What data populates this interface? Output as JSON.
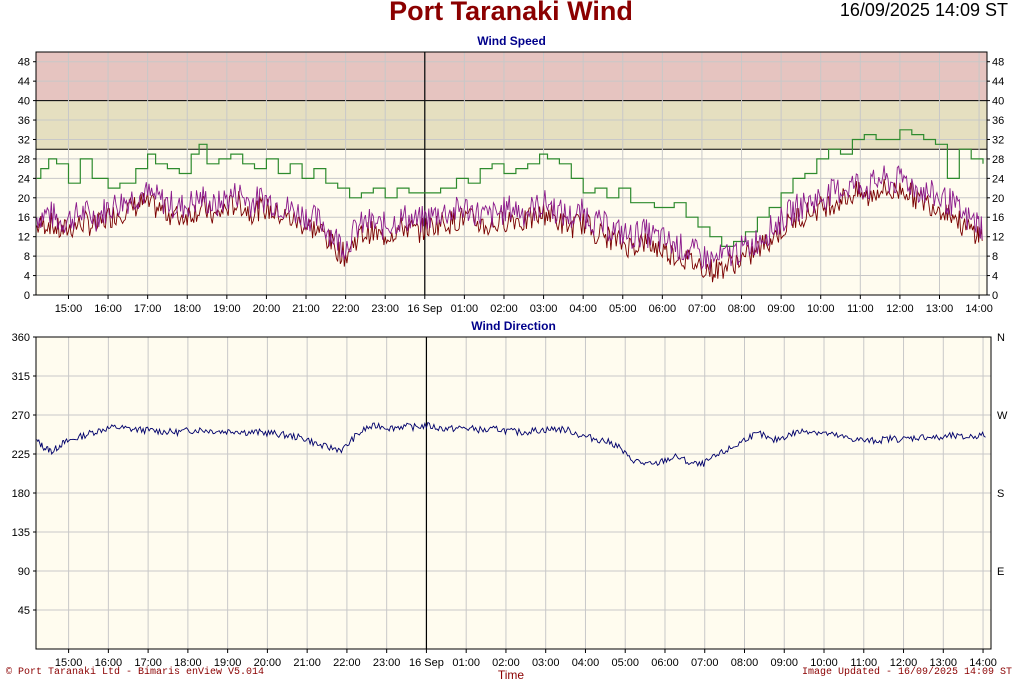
{
  "title": "Port Taranaki Wind",
  "timestamp": "16/09/2025 14:09 ST",
  "footer": {
    "left": "© Port Taranaki Ltd - Bimaris enView V5.014",
    "center": "Time",
    "right": "Image Updated - 16/09/2025 14:09 ST"
  },
  "colors": {
    "title": "#8b0000",
    "panel_title": "#00008b",
    "plot_bg": "#fffcef",
    "band_high": "#e6c4c0",
    "band_mid": "#e5dfc0",
    "gust": "#2e8b2e",
    "speed_purple": "#8b1a8b",
    "speed_dark": "#7a0000",
    "direction": "#00006b"
  },
  "chart_data": [
    {
      "type": "line",
      "title": "Wind Speed",
      "x_tick_labels": [
        "15:00",
        "16:00",
        "17:00",
        "18:00",
        "19:00",
        "20:00",
        "21:00",
        "22:00",
        "23:00",
        "16 Sep",
        "01:00",
        "02:00",
        "03:00",
        "04:00",
        "05:00",
        "06:00",
        "07:00",
        "08:00",
        "09:00",
        "10:00",
        "11:00",
        "12:00",
        "13:00",
        "14:00"
      ],
      "x_range_hours": [
        -9.82,
        14.2
      ],
      "x_tick_hours": [
        -9,
        -8,
        -7,
        -6,
        -5,
        -4,
        -3,
        -2,
        -1,
        0,
        1,
        2,
        3,
        4,
        5,
        6,
        7,
        8,
        9,
        10,
        11,
        12,
        13,
        14
      ],
      "divider_hour": 0,
      "y_ticks": [
        0,
        4,
        8,
        12,
        16,
        20,
        24,
        28,
        32,
        36,
        40,
        44,
        48
      ],
      "ylim": [
        0,
        50
      ],
      "bands": [
        {
          "from": 30,
          "to": 40,
          "color": "#e5dfc0"
        },
        {
          "from": 40,
          "to": 50,
          "color": "#e6c4c0"
        }
      ],
      "grid": true,
      "series": [
        {
          "key": "gust",
          "color": "#2e8b2e",
          "x": [
            -9.8,
            -9.7,
            -9.5,
            -9.3,
            -9.0,
            -8.7,
            -8.4,
            -8.0,
            -7.7,
            -7.3,
            -7.0,
            -6.8,
            -6.5,
            -6.2,
            -5.9,
            -5.7,
            -5.5,
            -5.2,
            -4.9,
            -4.6,
            -4.3,
            -4.0,
            -3.7,
            -3.4,
            -3.1,
            -2.8,
            -2.5,
            -2.2,
            -1.9,
            -1.6,
            -1.3,
            -1.0,
            -0.7,
            -0.4,
            0.0,
            0.4,
            0.8,
            1.1,
            1.4,
            1.7,
            2.0,
            2.3,
            2.6,
            2.9,
            3.1,
            3.4,
            3.7,
            4.0,
            4.3,
            4.6,
            4.9,
            5.2,
            5.5,
            5.8,
            6.0,
            6.3,
            6.6,
            6.9,
            7.2,
            7.5,
            7.8,
            8.1,
            8.4,
            8.7,
            9.0,
            9.3,
            9.6,
            9.9,
            10.2,
            10.5,
            10.8,
            11.1,
            11.4,
            11.7,
            12.0,
            12.3,
            12.6,
            12.9,
            13.2,
            13.5,
            13.8,
            14.1
          ],
          "y": [
            24,
            26,
            28,
            27,
            23,
            28,
            24,
            22,
            23,
            26,
            29,
            27,
            26,
            25,
            29,
            31,
            27,
            28,
            29,
            27,
            26,
            28,
            25,
            27,
            24,
            26,
            23,
            22,
            20,
            21,
            22,
            20,
            22,
            21,
            21,
            22,
            24,
            23,
            26,
            27,
            25,
            26,
            27,
            29,
            28,
            27,
            24,
            21,
            22,
            20,
            22,
            19,
            19,
            18,
            18,
            19,
            16,
            14,
            12,
            10,
            11,
            13,
            16,
            18,
            21,
            24,
            25,
            28,
            30,
            29,
            32,
            33,
            32,
            32,
            34,
            33,
            32,
            31,
            24,
            30,
            28,
            27
          ]
        },
        {
          "key": "speed",
          "color": "#8b1a8b",
          "x": [
            -9.8,
            -9.5,
            -9.2,
            -8.9,
            -8.6,
            -8.3,
            -8.0,
            -7.7,
            -7.4,
            -7.1,
            -6.8,
            -6.5,
            -6.2,
            -5.9,
            -5.6,
            -5.3,
            -5.0,
            -4.7,
            -4.4,
            -4.1,
            -3.8,
            -3.5,
            -3.2,
            -2.9,
            -2.6,
            -2.3,
            -2.0,
            -1.7,
            -1.4,
            -1.1,
            -0.8,
            -0.5,
            -0.2,
            0.1,
            0.4,
            0.7,
            1.0,
            1.3,
            1.6,
            1.9,
            2.2,
            2.5,
            2.8,
            3.1,
            3.4,
            3.7,
            4.0,
            4.3,
            4.6,
            4.9,
            5.2,
            5.5,
            5.8,
            6.1,
            6.4,
            6.7,
            7.0,
            7.3,
            7.6,
            7.9,
            8.2,
            8.5,
            8.8,
            9.1,
            9.4,
            9.7,
            10.0,
            10.3,
            10.6,
            10.9,
            11.2,
            11.5,
            11.8,
            12.1,
            12.4,
            12.7,
            13.0,
            13.3,
            13.6,
            13.9,
            14.1
          ],
          "y": [
            16,
            17,
            15,
            16,
            17,
            16,
            18,
            19,
            20,
            21,
            20,
            19,
            18,
            19,
            20,
            18,
            20,
            21,
            19,
            20,
            19,
            18,
            17,
            16,
            15,
            12,
            10,
            14,
            15,
            14,
            15,
            16,
            15,
            16,
            17,
            17,
            18,
            17,
            16,
            17,
            18,
            17,
            18,
            19,
            17,
            16,
            17,
            15,
            14,
            13,
            12,
            13,
            12,
            11,
            10,
            9,
            8,
            7,
            8,
            9,
            10,
            12,
            14,
            16,
            18,
            19,
            20,
            21,
            22,
            23,
            22,
            24,
            23,
            24,
            22,
            21,
            20,
            19,
            16,
            15,
            14
          ]
        }
      ]
    },
    {
      "type": "line",
      "title": "Wind Direction",
      "x_tick_labels": [
        "15:00",
        "16:00",
        "17:00",
        "18:00",
        "19:00",
        "20:00",
        "21:00",
        "22:00",
        "23:00",
        "16 Sep",
        "01:00",
        "02:00",
        "03:00",
        "04:00",
        "05:00",
        "06:00",
        "07:00",
        "08:00",
        "09:00",
        "10:00",
        "11:00",
        "12:00",
        "13:00",
        "14:00"
      ],
      "x_range_hours": [
        -9.82,
        14.2
      ],
      "x_tick_hours": [
        -9,
        -8,
        -7,
        -6,
        -5,
        -4,
        -3,
        -2,
        -1,
        0,
        1,
        2,
        3,
        4,
        5,
        6,
        7,
        8,
        9,
        10,
        11,
        12,
        13,
        14
      ],
      "divider_hour": 0,
      "y_ticks": [
        45,
        90,
        135,
        180,
        225,
        270,
        315,
        360
      ],
      "right_labels": [
        {
          "value": 360,
          "text": "N"
        },
        {
          "value": 270,
          "text": "W"
        },
        {
          "value": 180,
          "text": "S"
        },
        {
          "value": 90,
          "text": "E"
        }
      ],
      "ylim": [
        0,
        360
      ],
      "grid": true,
      "series": [
        {
          "key": "direction",
          "color": "#00006b",
          "x": [
            -9.8,
            -9.6,
            -9.4,
            -9.2,
            -9.0,
            -8.7,
            -8.4,
            -8.1,
            -7.8,
            -7.5,
            -7.2,
            -6.9,
            -6.6,
            -6.3,
            -6.0,
            -5.7,
            -5.4,
            -5.1,
            -4.8,
            -4.5,
            -4.2,
            -3.9,
            -3.6,
            -3.3,
            -3.0,
            -2.7,
            -2.4,
            -2.1,
            -1.8,
            -1.5,
            -1.2,
            -0.9,
            -0.6,
            -0.3,
            0.0,
            0.3,
            0.6,
            0.9,
            1.2,
            1.5,
            1.8,
            2.1,
            2.4,
            2.7,
            3.0,
            3.3,
            3.6,
            3.9,
            4.2,
            4.5,
            4.8,
            5.1,
            5.4,
            5.7,
            6.0,
            6.3,
            6.6,
            6.9,
            7.2,
            7.5,
            7.8,
            8.1,
            8.4,
            8.7,
            9.0,
            9.3,
            9.6,
            9.9,
            10.2,
            10.5,
            10.8,
            11.1,
            11.4,
            11.7,
            12.0,
            12.3,
            12.6,
            12.9,
            13.2,
            13.5,
            13.8,
            14.1
          ],
          "y": [
            240,
            232,
            228,
            236,
            240,
            245,
            250,
            254,
            256,
            254,
            253,
            252,
            251,
            250,
            252,
            253,
            252,
            251,
            252,
            250,
            250,
            249,
            247,
            245,
            242,
            235,
            232,
            230,
            245,
            255,
            258,
            255,
            257,
            256,
            258,
            255,
            254,
            255,
            254,
            252,
            254,
            251,
            250,
            252,
            253,
            254,
            252,
            246,
            243,
            240,
            235,
            220,
            215,
            212,
            218,
            222,
            215,
            212,
            220,
            228,
            235,
            245,
            248,
            240,
            245,
            250,
            252,
            250,
            247,
            244,
            242,
            240,
            241,
            243,
            242,
            244,
            245,
            243,
            246,
            244,
            246,
            247
          ]
        }
      ]
    }
  ]
}
